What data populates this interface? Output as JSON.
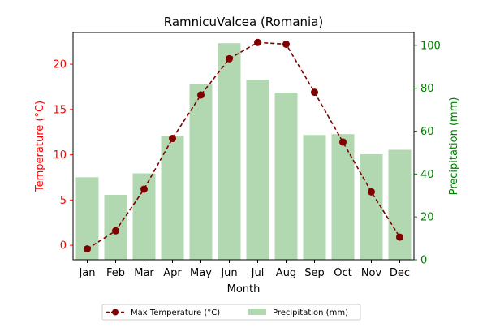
{
  "chart_data": {
    "type": "bar",
    "title": "RamnicuValcea (Romania)",
    "xlabel": "Month",
    "ylabel_left": "Temperature (°C)",
    "ylabel_right": "Precipitation (mm)",
    "categories": [
      "Jan",
      "Feb",
      "Mar",
      "Apr",
      "May",
      "Jun",
      "Jul",
      "Aug",
      "Sep",
      "Oct",
      "Nov",
      "Dec"
    ],
    "series": [
      {
        "name": "Max Temperature (°C)",
        "kind": "line",
        "axis": "left",
        "color": "#800000",
        "values": [
          -0.4,
          1.6,
          6.2,
          11.8,
          16.6,
          20.6,
          22.4,
          22.2,
          16.9,
          11.4,
          5.9,
          0.9
        ]
      },
      {
        "name": "Precipitation (mm)",
        "kind": "bar",
        "axis": "right",
        "color": "#b2d8b2",
        "values": [
          38.5,
          30.3,
          40.3,
          57.7,
          82,
          101,
          84,
          78,
          58.2,
          58.6,
          49.2,
          51.3
        ]
      }
    ],
    "ylim_left": [
      -1.6,
      23.5
    ],
    "ylim_right": [
      0,
      106
    ],
    "yticks_left": [
      0,
      5,
      10,
      15,
      20
    ],
    "yticks_right": [
      0,
      20,
      40,
      60,
      80,
      100
    ],
    "left_axis_color": "#ff0000",
    "right_axis_color": "#008000",
    "grid": false,
    "legend_position": "bottom-center"
  }
}
